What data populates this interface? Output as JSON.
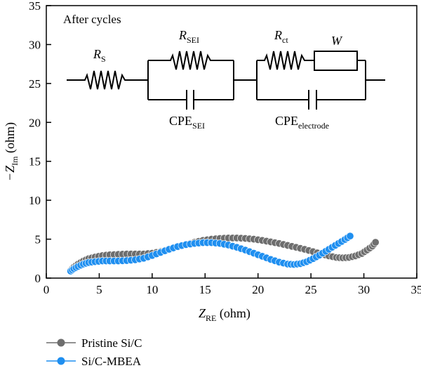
{
  "chart_data": {
    "type": "scatter",
    "annotation": "After cycles",
    "xlabel": {
      "main": "Z",
      "sub": "RE",
      "unit": " (ohm)"
    },
    "ylabel": {
      "main": "−Z",
      "sub": "Im",
      "unit": " (ohm)"
    },
    "xlim": [
      0,
      35
    ],
    "ylim": [
      0,
      35
    ],
    "xticks": [
      0,
      5,
      10,
      15,
      20,
      25,
      30,
      35
    ],
    "yticks": [
      0,
      5,
      10,
      15,
      20,
      25,
      30,
      35
    ],
    "grid": false,
    "legend_position": "bottom-left",
    "series": [
      {
        "name": "Pristine Si/C",
        "color": "#6e6e6e",
        "x": [
          2.3,
          2.6,
          3.0,
          3.5,
          4.0,
          4.6,
          5.3,
          6.0,
          6.8,
          7.6,
          8.4,
          9.2,
          10.0,
          10.8,
          11.6,
          12.4,
          13.2,
          14.0,
          14.8,
          15.6,
          16.4,
          17.2,
          18.0,
          18.8,
          19.6,
          20.4,
          21.2,
          22.0,
          22.8,
          23.6,
          24.4,
          25.2,
          26.0,
          26.7,
          27.4,
          28.0,
          28.6,
          29.2,
          29.8,
          30.3,
          30.8,
          31.1
        ],
        "y": [
          1.0,
          1.4,
          1.8,
          2.2,
          2.5,
          2.7,
          2.9,
          3.0,
          3.05,
          3.1,
          3.1,
          3.1,
          3.2,
          3.4,
          3.7,
          4.0,
          4.3,
          4.6,
          4.85,
          5.0,
          5.1,
          5.15,
          5.15,
          5.1,
          5.0,
          4.85,
          4.65,
          4.45,
          4.2,
          3.95,
          3.7,
          3.4,
          3.1,
          2.85,
          2.65,
          2.6,
          2.65,
          2.85,
          3.15,
          3.6,
          4.1,
          4.6
        ]
      },
      {
        "name": "Si/C-MBEA",
        "color": "#1f8ff0",
        "x": [
          2.3,
          2.6,
          3.0,
          3.5,
          4.0,
          4.6,
          5.3,
          6.0,
          6.8,
          7.6,
          8.4,
          9.2,
          10.0,
          10.8,
          11.6,
          12.4,
          13.2,
          14.0,
          14.8,
          15.6,
          16.4,
          17.2,
          18.0,
          18.8,
          19.6,
          20.4,
          21.2,
          22.0,
          22.8,
          23.4,
          24.0,
          24.6,
          25.2,
          25.8,
          26.4,
          27.0,
          27.6,
          28.2,
          28.7
        ],
        "y": [
          0.9,
          1.2,
          1.5,
          1.8,
          2.0,
          2.1,
          2.2,
          2.2,
          2.2,
          2.25,
          2.35,
          2.55,
          2.9,
          3.3,
          3.7,
          4.05,
          4.3,
          4.45,
          4.55,
          4.55,
          4.45,
          4.25,
          3.95,
          3.6,
          3.2,
          2.8,
          2.4,
          2.05,
          1.8,
          1.75,
          1.85,
          2.1,
          2.5,
          2.95,
          3.45,
          3.95,
          4.45,
          4.95,
          5.4
        ]
      }
    ]
  },
  "circuit": {
    "rs": {
      "main": "R",
      "sub": "S"
    },
    "rsei": {
      "main": "R",
      "sub": "SEI"
    },
    "cpesei": {
      "main": "CPE",
      "sub": "SEI"
    },
    "rct": {
      "main": "R",
      "sub": "ct"
    },
    "w": "W",
    "cpeel": {
      "main": "CPE",
      "sub": "electrode"
    }
  }
}
